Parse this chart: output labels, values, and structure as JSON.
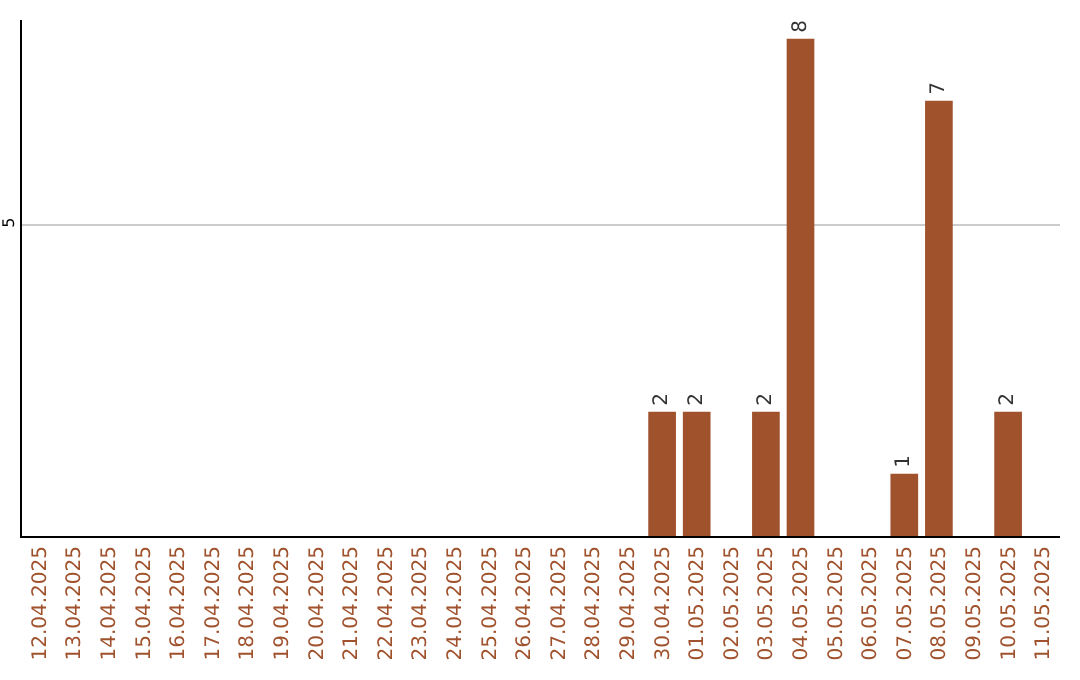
{
  "chart_data": {
    "type": "bar",
    "categories": [
      "12.04.2025",
      "13.04.2025",
      "14.04.2025",
      "15.04.2025",
      "16.04.2025",
      "17.04.2025",
      "18.04.2025",
      "19.04.2025",
      "20.04.2025",
      "21.04.2025",
      "22.04.2025",
      "23.04.2025",
      "24.04.2025",
      "25.04.2025",
      "26.04.2025",
      "27.04.2025",
      "28.04.2025",
      "29.04.2025",
      "30.04.2025",
      "01.05.2025",
      "02.05.2025",
      "03.05.2025",
      "04.05.2025",
      "05.05.2025",
      "06.05.2025",
      "07.05.2025",
      "08.05.2025",
      "09.05.2025",
      "10.05.2025",
      "11.05.2025"
    ],
    "values": [
      null,
      null,
      null,
      null,
      null,
      null,
      null,
      null,
      null,
      null,
      null,
      null,
      null,
      null,
      null,
      null,
      null,
      null,
      2,
      2,
      null,
      2,
      8,
      null,
      null,
      1,
      7,
      null,
      2,
      null
    ],
    "value_labels": [
      null,
      null,
      null,
      null,
      null,
      null,
      null,
      null,
      null,
      null,
      null,
      null,
      null,
      null,
      null,
      null,
      null,
      null,
      "2",
      "2",
      null,
      "2",
      "8",
      null,
      null,
      "1",
      "7",
      null,
      "2",
      null
    ],
    "color": "#a0522d",
    "ylim": [
      0,
      8.3
    ],
    "yticks": [
      5
    ],
    "grid": "y"
  }
}
